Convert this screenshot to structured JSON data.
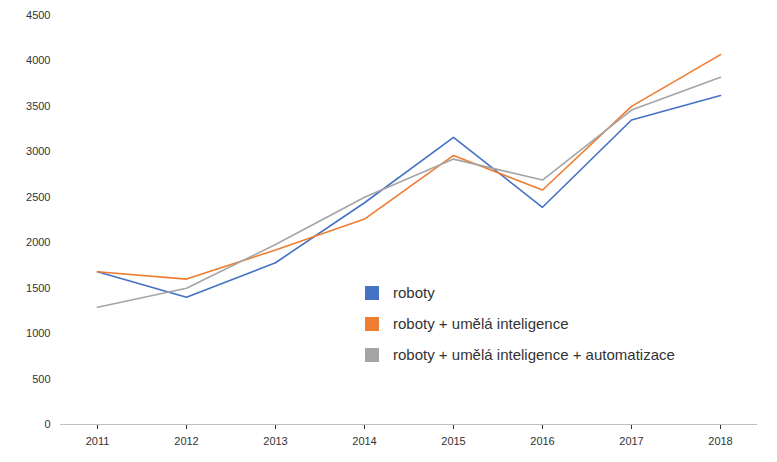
{
  "chart_data": {
    "type": "line",
    "categories": [
      "2011",
      "2012",
      "2013",
      "2014",
      "2015",
      "2016",
      "2017",
      "2018"
    ],
    "series": [
      {
        "name": "roboty",
        "color": "#4472c4",
        "values": [
          1680,
          1400,
          1780,
          2440,
          3160,
          2390,
          3350,
          3620
        ]
      },
      {
        "name": "roboty + umělá inteligence",
        "color": "#ed7d31",
        "values": [
          1680,
          1600,
          1920,
          2260,
          2960,
          2580,
          3500,
          4070
        ]
      },
      {
        "name": "roboty + umělá inteligence + automatizace",
        "color": "#a5a5a5",
        "values": [
          1290,
          1500,
          1980,
          2500,
          2920,
          2690,
          3460,
          3820
        ]
      }
    ],
    "ylim": [
      0,
      4500
    ],
    "yticks": [
      0,
      500,
      1000,
      1500,
      2000,
      2500,
      3000,
      3500,
      4000,
      4500
    ],
    "grid": false,
    "legend": "lower right"
  }
}
